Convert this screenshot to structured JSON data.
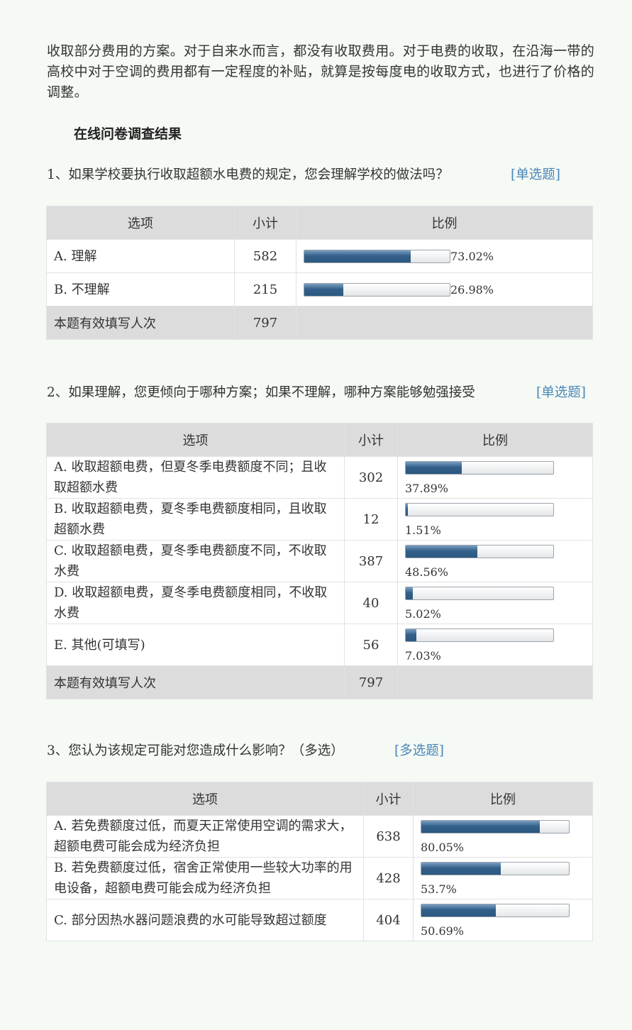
{
  "intro": "收取部分费用的方案。对于自来水而言，都没有收取费用。对于电费的收取，在沿海一带的高校中对于空调的费用都有一定程度的补贴，就算是按每度电的收取方式，也进行了价格的调整。",
  "heading": "在线问卷调查结果",
  "header": {
    "option": "选项",
    "count": "小计",
    "ratio": "比例"
  },
  "footer_label": "本题有效填写人次",
  "bar_color": "#2c5880",
  "questions": [
    {
      "title": "1、如果学校要执行收取超额水电费的规定，您会理解学校的做法吗？",
      "tag": "[单选题]",
      "rows": [
        {
          "option": "A. 理解",
          "count": "582",
          "percent": "73.02%",
          "value": 73.02
        },
        {
          "option": "B. 不理解",
          "count": "215",
          "percent": "26.98%",
          "value": 26.98
        }
      ],
      "total": "797"
    },
    {
      "title": "2、如果理解，您更倾向于哪种方案；如果不理解，哪种方案能够勉强接受",
      "tag": "[单选题]",
      "rows": [
        {
          "option": "A. 收取超额电费，但夏冬季电费额度不同；且收取超额水费",
          "count": "302",
          "percent": "37.89%",
          "value": 37.89
        },
        {
          "option": "B. 收取超额电费，夏冬季电费额度相同，且收取超额水费",
          "count": "12",
          "percent": "1.51%",
          "value": 1.51
        },
        {
          "option": "C. 收取超额电费，夏冬季电费额度不同，不收取水费",
          "count": "387",
          "percent": "48.56%",
          "value": 48.56
        },
        {
          "option": "D. 收取超额电费，夏冬季电费额度相同，不收取水费",
          "count": "40",
          "percent": "5.02%",
          "value": 5.02
        },
        {
          "option": "E. 其他(可填写)",
          "count": "56",
          "percent": "7.03%",
          "value": 7.03
        }
      ],
      "total": "797"
    },
    {
      "title": "3、您认为该规定可能对您造成什么影响？（多选）",
      "tag": "[多选题]",
      "rows": [
        {
          "option": "A. 若免费额度过低，而夏天正常使用空调的需求大，超额电费可能会成为经济负担",
          "count": "638",
          "percent": "80.05%",
          "value": 80.05
        },
        {
          "option": "B. 若免费额度过低，宿舍正常使用一些较大功率的用电设备，超额电费可能会成为经济负担",
          "count": "428",
          "percent": "53.7%",
          "value": 53.7
        },
        {
          "option": "C. 部分因热水器问题浪费的水可能导致超过额度",
          "count": "404",
          "percent": "50.69%",
          "value": 50.69
        }
      ]
    }
  ]
}
